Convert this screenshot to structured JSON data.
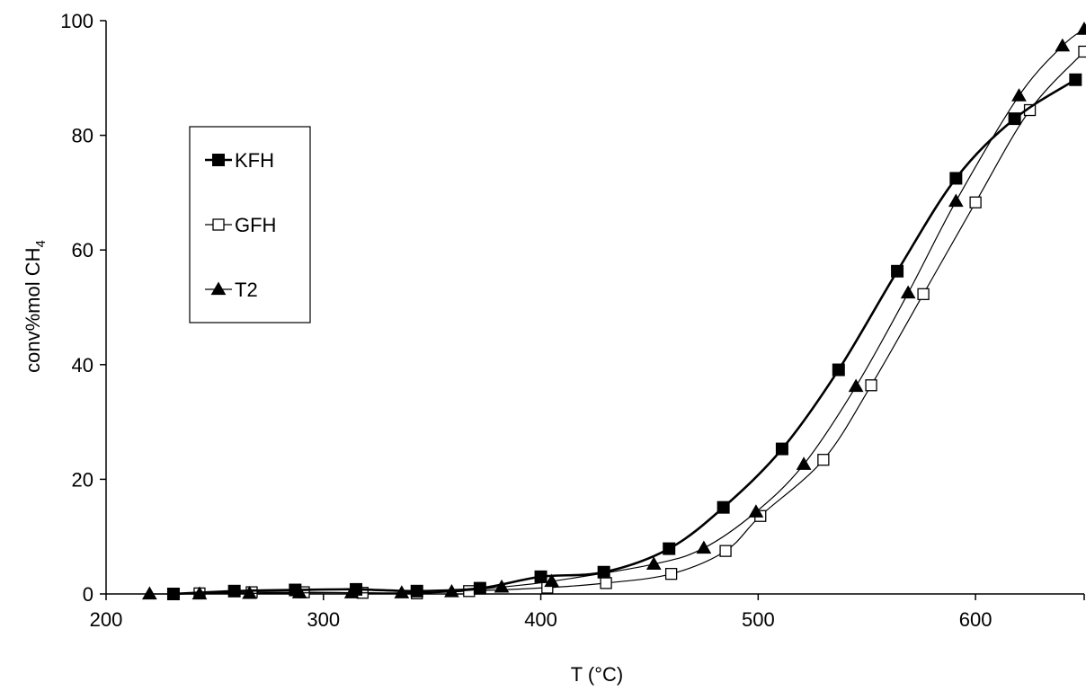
{
  "chart_data": {
    "type": "line",
    "xlabel": "T (°C)",
    "ylabel_main": "conv%mol CH",
    "ylabel_sub": "4",
    "xlim": [
      200,
      650
    ],
    "ylim": [
      0,
      100
    ],
    "xticks": [
      200,
      300,
      400,
      500,
      600
    ],
    "yticks": [
      0,
      20,
      40,
      60,
      80,
      100
    ],
    "grid": false,
    "legend_position": "left",
    "series": [
      {
        "name": "KFH",
        "marker": "square-filled",
        "line": "bold",
        "color": "#000000",
        "x": [
          231,
          259,
          287,
          315,
          343,
          372,
          400,
          429,
          459,
          484,
          511,
          537,
          564,
          591,
          618,
          646
        ],
        "y": [
          0,
          0.5,
          0.7,
          0.8,
          0.5,
          1.0,
          3.0,
          3.8,
          7.9,
          15.1,
          25.3,
          39.1,
          56.3,
          72.5,
          82.9,
          89.7
        ]
      },
      {
        "name": "GFH",
        "marker": "square-open",
        "line": "thin",
        "color": "#000000",
        "x": [
          243,
          267,
          291,
          318,
          343,
          367,
          403,
          430,
          460,
          485,
          501,
          530,
          552,
          576,
          600,
          625,
          650
        ],
        "y": [
          0.1,
          0.3,
          0.3,
          0.2,
          0.1,
          0.5,
          1.1,
          1.9,
          3.5,
          7.5,
          13.6,
          23.4,
          36.4,
          52.3,
          68.3,
          84.4,
          94.6
        ]
      },
      {
        "name": "T2",
        "marker": "triangle-filled",
        "line": "thin",
        "color": "#000000",
        "x": [
          220,
          243,
          266,
          289,
          313,
          336,
          359,
          382,
          405,
          452,
          475,
          499,
          521,
          545,
          569,
          591,
          620,
          640,
          650
        ],
        "y": [
          0,
          0,
          0.1,
          0.2,
          0.2,
          0.2,
          0.4,
          1.2,
          2.2,
          5.2,
          8.0,
          14.3,
          22.6,
          36.2,
          52.5,
          68.5,
          86.9,
          95.6,
          98.5
        ]
      }
    ]
  }
}
